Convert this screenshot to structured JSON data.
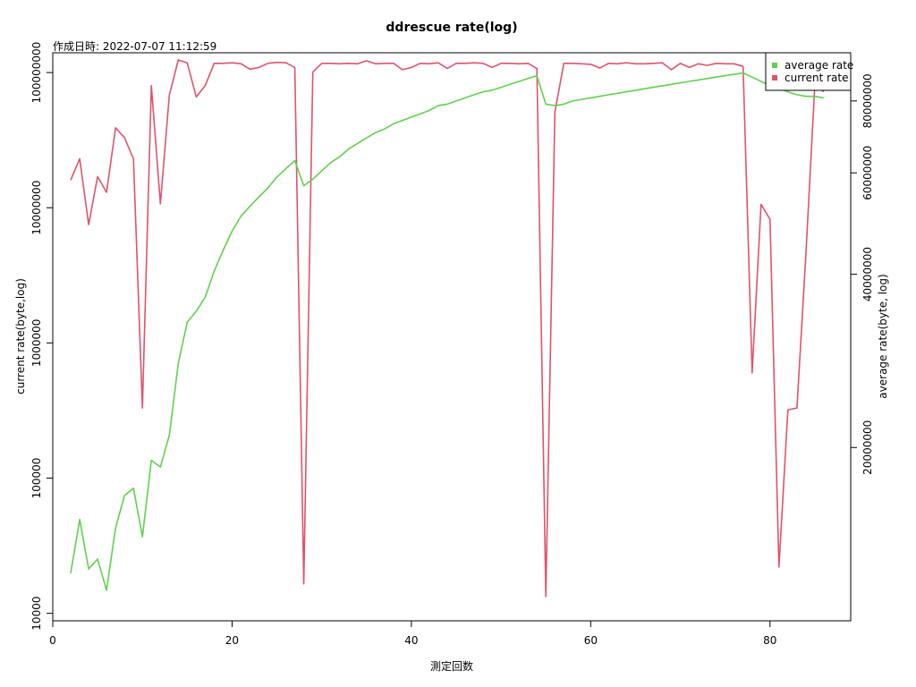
{
  "chart_data": {
    "type": "line",
    "title": "ddrescue rate(log)",
    "subtitle": "作成日時: 2022-07-07 11:12:59",
    "xlabel": "測定回数",
    "ylabel_left": "current rate(byte,log)",
    "ylabel_right": "average rate(byte, log)",
    "xlim": [
      0,
      89
    ],
    "x_ticks": [
      0,
      20,
      40,
      60,
      80
    ],
    "x_tick_labels": [
      "0",
      "20",
      "40",
      "60",
      "80"
    ],
    "left_axis": {
      "scale": "log",
      "ylim": [
        8800,
        140000000
      ],
      "ticks": [
        10000,
        100000,
        1000000,
        10000000,
        100000000
      ],
      "tick_labels": [
        "10000",
        "100000",
        "1000000",
        "10000000",
        "100000000"
      ]
    },
    "right_axis": {
      "scale": "log",
      "ylim": [
        10000000,
        97000000
      ],
      "ticks": [
        20000000,
        40000000,
        60000000,
        80000000
      ],
      "tick_labels": [
        "20000000",
        "40000000",
        "60000000",
        "80000000"
      ]
    },
    "legend": {
      "position": "top-right",
      "entries": [
        {
          "label": "average rate",
          "color": "#61D04F"
        },
        {
          "label": "current rate",
          "color": "#DF536B"
        }
      ]
    },
    "series": [
      {
        "name": "current rate",
        "color": "#DF536B",
        "axis": "left",
        "x": [
          2,
          3,
          4,
          5,
          6,
          7,
          8,
          9,
          10,
          11,
          12,
          13,
          14,
          15,
          16,
          17,
          18,
          19,
          20,
          21,
          22,
          23,
          24,
          25,
          26,
          27,
          28,
          29,
          30,
          31,
          32,
          33,
          34,
          35,
          36,
          37,
          38,
          39,
          40,
          41,
          42,
          43,
          44,
          45,
          46,
          47,
          48,
          49,
          50,
          51,
          52,
          53,
          54,
          55,
          56,
          57,
          58,
          59,
          60,
          61,
          62,
          63,
          64,
          65,
          66,
          67,
          68,
          69,
          70,
          71,
          72,
          73,
          74,
          75,
          76,
          77,
          78,
          79,
          80,
          81,
          82,
          83,
          84,
          85,
          86
        ],
        "y": [
          16000000,
          23000000,
          7500000,
          17000000,
          13000000,
          39000000,
          33000000,
          23000000,
          330000,
          80000000,
          10700000,
          68000000,
          124000000,
          118000000,
          66000000,
          80000000,
          117000000,
          117000000,
          118000000,
          116000000,
          106000000,
          109000000,
          117000000,
          119000000,
          118000000,
          109000000,
          16500,
          101000000,
          117000000,
          117000000,
          116000000,
          117000000,
          116000000,
          122000000,
          116000000,
          117000000,
          117000000,
          105000000,
          109000000,
          117000000,
          116000000,
          118000000,
          107000000,
          117000000,
          117000000,
          118000000,
          117000000,
          109000000,
          117000000,
          117000000,
          116000000,
          117000000,
          107000000,
          13300,
          51000000,
          117000000,
          117000000,
          116000000,
          115000000,
          108000000,
          117000000,
          116000000,
          118000000,
          116000000,
          116000000,
          117000000,
          118000000,
          105000000,
          117000000,
          109000000,
          116000000,
          113000000,
          117000000,
          116000000,
          116000000,
          111000000,
          600000,
          10600000,
          8200000,
          22000,
          320000,
          330000,
          4500000,
          81000000,
          72000000
        ]
      },
      {
        "name": "average rate",
        "color": "#61D04F",
        "axis": "right",
        "x": [
          2,
          3,
          4,
          5,
          6,
          7,
          8,
          9,
          10,
          11,
          12,
          13,
          14,
          15,
          16,
          17,
          18,
          19,
          20,
          21,
          22,
          23,
          24,
          25,
          26,
          27,
          28,
          29,
          30,
          31,
          32,
          33,
          34,
          35,
          36,
          37,
          38,
          39,
          40,
          41,
          42,
          43,
          44,
          45,
          46,
          47,
          48,
          49,
          50,
          51,
          52,
          53,
          54,
          55,
          56,
          57,
          58,
          59,
          60,
          61,
          62,
          63,
          64,
          65,
          66,
          67,
          68,
          69,
          70,
          71,
          72,
          73,
          74,
          75,
          76,
          77,
          78,
          79,
          80,
          81,
          82,
          83,
          84,
          85,
          86
        ],
        "y": [
          12100000,
          15000000,
          12300000,
          12800000,
          11300000,
          14500000,
          16500000,
          17000000,
          14000000,
          19000000,
          18500000,
          21000000,
          28000000,
          33000000,
          34500000,
          36500000,
          40500000,
          44000000,
          47500000,
          50500000,
          52500000,
          54500000,
          56500000,
          59000000,
          61000000,
          63000000,
          57000000,
          58500000,
          60500000,
          62500000,
          64000000,
          66000000,
          67500000,
          69000000,
          70500000,
          71500000,
          73000000,
          74000000,
          75000000,
          76000000,
          77000000,
          78500000,
          79000000,
          80000000,
          81000000,
          82000000,
          83000000,
          83500000,
          84500000,
          85500000,
          86500000,
          87500000,
          88500000,
          79000000,
          78500000,
          79000000,
          80000000,
          80500000,
          81000000,
          81500000,
          82000000,
          82500000,
          83000000,
          83500000,
          84000000,
          84500000,
          85000000,
          85500000,
          86000000,
          86500000,
          87000000,
          87500000,
          88000000,
          88500000,
          89000000,
          89500000,
          88000000,
          86500000,
          85000000,
          84000000,
          83000000,
          82000000,
          81500000,
          81500000,
          81000000
        ]
      }
    ]
  }
}
